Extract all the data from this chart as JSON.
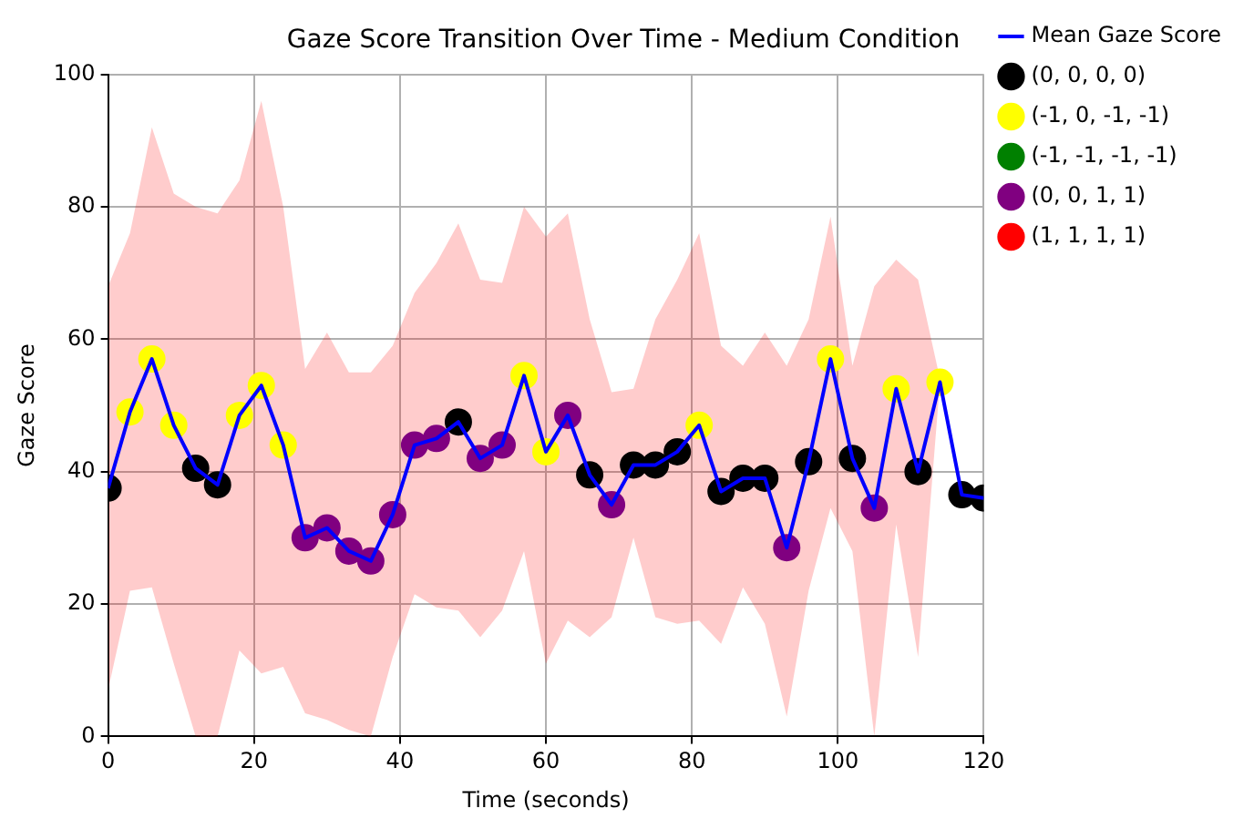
{
  "chart_data": {
    "type": "line",
    "title": "Gaze Score Transition Over Time - Medium Condition",
    "xlabel": "Time (seconds)",
    "ylabel": "Gaze Score",
    "x": [
      0,
      3,
      6,
      9,
      12,
      15,
      18,
      21,
      24,
      27,
      30,
      33,
      36,
      39,
      42,
      45,
      48,
      51,
      54,
      57,
      60,
      63,
      66,
      69,
      72,
      75,
      78,
      81,
      84,
      87,
      90,
      93,
      96,
      99,
      102,
      105,
      108,
      111,
      114,
      117,
      120
    ],
    "series": [
      {
        "name": "Mean Gaze Score",
        "marker": "none",
        "color": "#0000ff",
        "values": [
          37.5,
          49,
          57,
          47,
          40.5,
          38,
          48.5,
          53,
          44,
          30,
          31.5,
          28,
          26.5,
          33.5,
          44,
          45,
          47.5,
          42,
          44,
          54.5,
          43,
          48.5,
          39.5,
          35,
          41,
          41,
          43,
          47,
          37,
          39,
          39,
          28.5,
          41.5,
          57,
          42,
          34.5,
          52.5,
          40,
          53.5,
          36.5,
          36
        ],
        "lower": [
          7,
          22,
          22.5,
          11,
          0,
          0,
          13,
          9.5,
          10.5,
          3.5,
          2.5,
          1,
          0,
          12,
          21.5,
          19.5,
          19,
          15,
          19,
          28,
          11,
          17.5,
          15,
          18,
          30,
          18,
          17,
          17.5,
          14,
          22.5,
          17,
          3,
          22,
          34.5,
          28,
          0,
          32,
          12,
          53.5,
          null,
          null
        ],
        "upper": [
          68,
          76,
          92,
          82,
          80,
          79,
          84,
          96,
          80,
          55.5,
          61,
          55,
          55,
          59,
          67,
          71.5,
          77.5,
          69,
          68.5,
          80,
          75.5,
          79,
          63,
          52,
          52.5,
          63,
          69,
          76,
          59,
          56,
          61,
          56,
          63,
          78.5,
          56,
          68,
          72,
          69,
          54,
          null,
          null
        ]
      },
      {
        "name": "(0, 0, 0, 0)",
        "type": "scatter",
        "marker": "circle",
        "color": "#000000",
        "x": [
          0,
          12,
          15,
          48,
          66,
          72,
          75,
          78,
          84,
          87,
          90,
          96,
          102,
          111,
          117,
          120
        ],
        "values": [
          37.5,
          40.5,
          38,
          47.5,
          39.5,
          41,
          41,
          43,
          37,
          39,
          39,
          41.5,
          42,
          40,
          36.5,
          36
        ]
      },
      {
        "name": "(-1, 0, -1, -1)",
        "type": "scatter",
        "marker": "circle",
        "color": "#ffff00",
        "x": [
          3,
          6,
          9,
          18,
          21,
          24,
          57,
          60,
          81,
          99,
          108,
          114
        ],
        "values": [
          49,
          57,
          47,
          48.5,
          53,
          44,
          54.5,
          43,
          47,
          57,
          52.5,
          53.5
        ]
      },
      {
        "name": "(-1, -1, -1, -1)",
        "type": "scatter",
        "marker": "circle",
        "color": "#008000",
        "values": [
          null,
          null,
          null,
          null,
          null,
          null,
          null,
          null,
          null,
          null,
          null,
          null,
          null,
          null,
          null,
          null,
          null,
          null,
          null,
          null,
          null,
          null,
          null,
          null,
          null,
          null,
          null,
          null,
          null,
          null,
          null,
          null,
          null,
          null,
          null,
          null,
          null,
          null,
          null,
          null,
          null
        ]
      },
      {
        "name": "(0, 0, 1, 1)",
        "type": "scatter",
        "marker": "circle",
        "color": "#800080",
        "x": [
          27,
          30,
          33,
          36,
          39,
          42,
          45,
          51,
          54,
          63,
          69,
          93,
          105
        ],
        "values": [
          30,
          31.5,
          28,
          26.5,
          33.5,
          44,
          45,
          42,
          44,
          48.5,
          35,
          28.5,
          34.5
        ]
      },
      {
        "name": "(1, 1, 1, 1)",
        "type": "scatter",
        "marker": "circle",
        "color": "#ff0000",
        "values": [
          null,
          null,
          null,
          null,
          null,
          null,
          null,
          null,
          null,
          null,
          null,
          null,
          null,
          null,
          null,
          null,
          null,
          null,
          null,
          null,
          null,
          null,
          null,
          null,
          null,
          null,
          null,
          null,
          null,
          null,
          null,
          null,
          null,
          null,
          null,
          null,
          null,
          null,
          null,
          null,
          null
        ]
      }
    ],
    "xlim": [
      0,
      120
    ],
    "xticks": [
      0,
      20,
      40,
      60,
      80,
      100,
      120
    ],
    "ylim": [
      0,
      100
    ],
    "yticks": [
      0,
      20,
      40,
      60,
      80,
      100
    ],
    "grid": true,
    "legend": "right"
  }
}
